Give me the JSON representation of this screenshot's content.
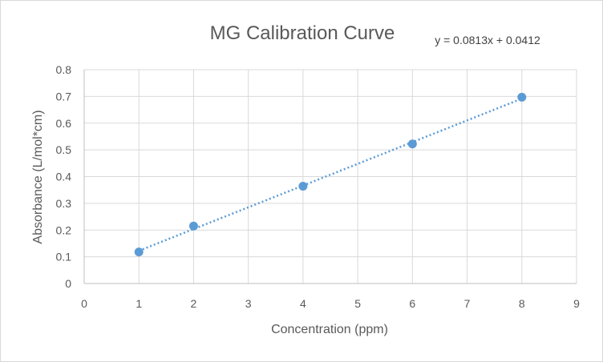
{
  "chart_data": {
    "type": "scatter",
    "title": "MG Calibration Curve",
    "xlabel": "Concentration (ppm)",
    "ylabel": "Absorbance (L/mol*cm)",
    "xlim": [
      0,
      9
    ],
    "ylim": [
      0,
      0.8
    ],
    "xticks": [
      0,
      1,
      2,
      3,
      4,
      5,
      6,
      7,
      8,
      9
    ],
    "yticks": [
      0,
      0.1,
      0.2,
      0.3,
      0.4,
      0.5,
      0.6,
      0.7,
      0.8
    ],
    "grid": true,
    "series": [
      {
        "name": "Absorbance",
        "color": "#5b9bd5",
        "x": [
          1,
          2,
          4,
          6,
          8
        ],
        "y": [
          0.118,
          0.215,
          0.364,
          0.522,
          0.697
        ]
      }
    ],
    "trendline": {
      "type": "linear",
      "style": "dotted",
      "color": "#5b9bd5",
      "slope": 0.0813,
      "intercept": 0.0412,
      "x_range": [
        1,
        8
      ],
      "equation_label": "y = 0.0813x + 0.0412"
    }
  }
}
